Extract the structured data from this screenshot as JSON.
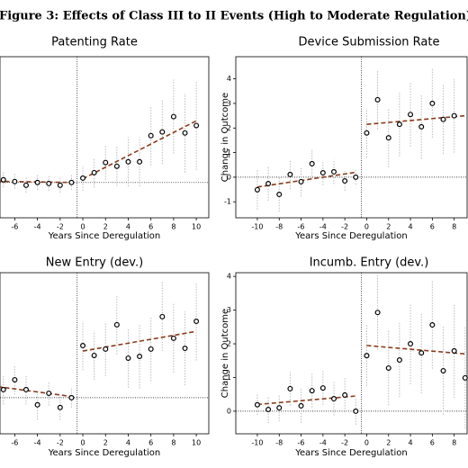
{
  "caption": "Figure 3: Effects of Class III to II Events (High to Moderate Regulation)",
  "chart_data": [
    {
      "type": "event-study",
      "title": "Patenting Rate",
      "xlabel": "Years Since Deregulation",
      "x": [
        -7,
        -6,
        -5,
        -4,
        -3,
        -2,
        -1,
        0,
        1,
        2,
        3,
        4,
        5,
        6,
        7,
        8,
        9,
        10
      ],
      "values": [
        0.11,
        0.04,
        -0.11,
        0,
        -0.04,
        -0.11,
        0,
        0.18,
        0.4,
        0.81,
        0.66,
        0.84,
        0.84,
        1.9,
        2.05,
        2.67,
        2.01,
        2.31
      ],
      "errors": [
        0.3,
        0.3,
        0.3,
        0.3,
        0.3,
        0.3,
        0.3,
        0.5,
        0.6,
        0.7,
        0.8,
        1.0,
        1.0,
        1.2,
        1.3,
        1.5,
        1.6,
        1.8
      ],
      "trend": [
        {
          "x": [
            -7.5,
            -1
          ],
          "values": [
            0.05,
            0
          ]
        },
        {
          "x": [
            0,
            10
          ],
          "values": [
            0.15,
            2.5
          ]
        }
      ],
      "vline": -0.5,
      "hline": 0,
      "xlim": [
        -7.3,
        11.1
      ],
      "ylim": [
        -1.43,
        5.1
      ],
      "xticks": [
        -6,
        -4,
        -2,
        0,
        2,
        4,
        6,
        8,
        10
      ],
      "point_color": "#000000",
      "error_color": "#bbbbbb",
      "trend_color": "#8b3a1a"
    },
    {
      "type": "event-study",
      "title": "Device Submission Rate",
      "xlabel": "Years Since Deregulation",
      "ylabel": "Change in Outcome",
      "x": [
        -10,
        -9,
        -8,
        -7,
        -6,
        -5,
        -4,
        -3,
        -2,
        -1,
        0,
        1,
        2,
        3,
        4,
        5,
        6,
        7,
        8
      ],
      "values": [
        -0.51,
        -0.26,
        -0.7,
        0.11,
        -0.18,
        0.55,
        0.18,
        0.22,
        -0.15,
        0,
        1.8,
        3.15,
        1.6,
        2.15,
        2.55,
        2.05,
        3.0,
        2.35,
        2.5
      ],
      "errors": [
        0.8,
        0.7,
        0.7,
        0.6,
        0.6,
        0.6,
        0.5,
        0.5,
        0.4,
        0.3,
        1.0,
        1.2,
        1.2,
        1.3,
        1.3,
        1.3,
        1.4,
        1.4,
        1.5
      ],
      "trend": [
        {
          "x": [
            -10,
            -1
          ],
          "values": [
            -0.4,
            0.2
          ]
        },
        {
          "x": [
            0,
            9
          ],
          "values": [
            2.15,
            2.5
          ]
        }
      ],
      "vline": -0.5,
      "hline": 0,
      "xlim": [
        -11.97,
        9.18
      ],
      "ylim": [
        -1.65,
        4.9
      ],
      "xticks": [
        -10,
        -8,
        -6,
        -4,
        -2,
        0,
        2,
        4,
        6,
        8
      ],
      "yticks": [
        -1,
        0,
        1,
        2,
        3,
        4
      ],
      "point_color": "#000000",
      "error_color": "#bbbbbb",
      "trend_color": "#8b3a1a"
    },
    {
      "type": "event-study",
      "title": "New Entry  (dev.)",
      "xlabel": "Years Since Deregulation",
      "x": [
        -7,
        -6,
        -5,
        -4,
        -3,
        -2,
        -1,
        0,
        1,
        2,
        3,
        4,
        5,
        6,
        7,
        8,
        9,
        10
      ],
      "values": [
        0.33,
        0.73,
        0.33,
        -0.29,
        0.18,
        -0.4,
        0,
        2.12,
        1.72,
        1.98,
        2.97,
        1.61,
        1.68,
        1.98,
        3.3,
        2.42,
        2.01,
        3.11
      ],
      "errors": [
        0.6,
        0.6,
        0.6,
        0.6,
        0.5,
        0.5,
        0.4,
        1.0,
        1.0,
        1.1,
        1.2,
        1.2,
        1.3,
        1.3,
        1.4,
        1.4,
        1.5,
        1.6
      ],
      "trend": [
        {
          "x": [
            -7.5,
            -1
          ],
          "values": [
            0.45,
            0.05
          ]
        },
        {
          "x": [
            0,
            10
          ],
          "values": [
            1.9,
            2.7
          ]
        }
      ],
      "vline": -0.5,
      "hline": 0,
      "xlim": [
        -7.3,
        11.1
      ],
      "ylim": [
        -1.47,
        5.09
      ],
      "xticks": [
        -6,
        -4,
        -2,
        0,
        2,
        4,
        6,
        8,
        10
      ],
      "point_color": "#000000",
      "error_color": "#bbbbbb",
      "trend_color": "#8b3a1a"
    },
    {
      "type": "event-study",
      "title": "Incumb. Entry (dev.)",
      "xlabel": "Years Since Deregulation",
      "ylabel": "Change in Outcome",
      "x": [
        -10,
        -9,
        -8,
        -7,
        -6,
        -5,
        -4,
        -3,
        -2,
        -1,
        0,
        1,
        2,
        3,
        4,
        5,
        6,
        7,
        8,
        9
      ],
      "values": [
        0.19,
        0.05,
        0.1,
        0.67,
        0.16,
        0.61,
        0.69,
        0.37,
        0.48,
        0,
        1.65,
        2.93,
        1.28,
        1.52,
        2.0,
        1.73,
        2.56,
        1.2,
        1.79,
        0.99
      ],
      "errors": [
        0.3,
        0.4,
        0.4,
        0.5,
        0.5,
        0.5,
        0.5,
        0.5,
        0.5,
        0.4,
        0.9,
        1.1,
        1.1,
        1.1,
        1.2,
        1.2,
        1.3,
        1.3,
        1.4,
        1.5
      ],
      "trend": [
        {
          "x": [
            -10,
            -1
          ],
          "values": [
            0.2,
            0.45
          ]
        },
        {
          "x": [
            0,
            9
          ],
          "values": [
            1.95,
            1.7
          ]
        }
      ],
      "vline": -0.5,
      "hline": 0,
      "xlim": [
        -11.97,
        9.18
      ],
      "ylim": [
        -0.67,
        4.11
      ],
      "xticks": [
        -10,
        -8,
        -6,
        -4,
        -2,
        0,
        2,
        4,
        6,
        8
      ],
      "yticks": [
        0,
        1,
        2,
        3,
        4
      ],
      "point_color": "#000000",
      "error_color": "#bbbbbb",
      "trend_color": "#8b3a1a"
    }
  ]
}
